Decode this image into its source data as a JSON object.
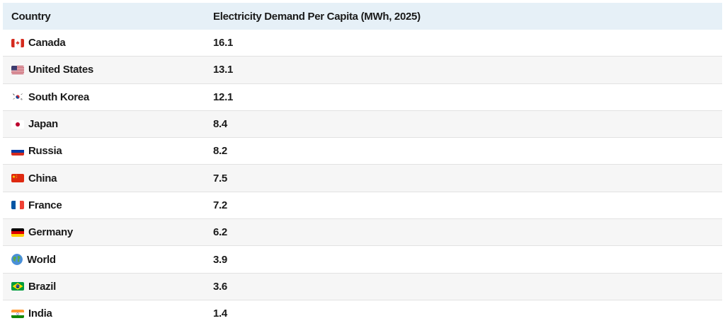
{
  "chart_data": {
    "type": "table",
    "columns": [
      "Country",
      "Electricity Demand Per Capita (MWh, 2025)"
    ],
    "rows": [
      {
        "country": "Canada",
        "value": "16.1",
        "flag": "canada-flag-icon"
      },
      {
        "country": "United States",
        "value": "13.1",
        "flag": "united-states-flag-icon"
      },
      {
        "country": "South Korea",
        "value": "12.1",
        "flag": "south-korea-flag-icon"
      },
      {
        "country": "Japan",
        "value": "8.4",
        "flag": "japan-flag-icon"
      },
      {
        "country": "Russia",
        "value": "8.2",
        "flag": "russia-flag-icon"
      },
      {
        "country": "China",
        "value": "7.5",
        "flag": "china-flag-icon"
      },
      {
        "country": "France",
        "value": "7.2",
        "flag": "france-flag-icon"
      },
      {
        "country": "Germany",
        "value": "6.2",
        "flag": "germany-flag-icon"
      },
      {
        "country": "World",
        "value": "3.9",
        "flag": "globe-icon"
      },
      {
        "country": "Brazil",
        "value": "3.6",
        "flag": "brazil-flag-icon"
      },
      {
        "country": "India",
        "value": "1.4",
        "flag": "india-flag-icon"
      }
    ]
  },
  "colors": {
    "header_bg": "#e6f0f7",
    "row_alt_bg": "#f6f6f6",
    "row_bg": "#ffffff",
    "divider": "#e2e2e2"
  }
}
